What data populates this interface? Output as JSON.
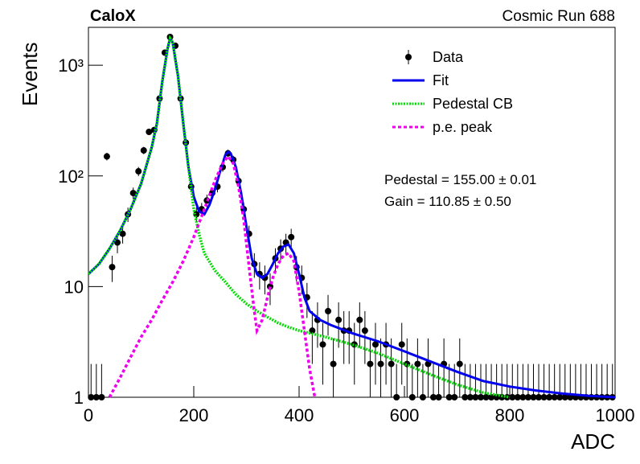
{
  "chart_data": {
    "type": "log-histogram-fit",
    "title": "CaloX",
    "subtitle": "Cosmic Run 688",
    "xlabel": "ADC",
    "ylabel": "Events",
    "annotations": [
      "Pedestal = 155.00 ± 0.01",
      "Gain = 110.85 ± 0.50"
    ],
    "xlim": [
      0,
      1000
    ],
    "xticks": [
      0,
      200,
      400,
      600,
      800,
      1000
    ],
    "ylim": [
      1,
      2200
    ],
    "log_y": true,
    "yticks": [
      1,
      10,
      {
        "value": 100,
        "label": "10²"
      },
      {
        "value": 1000,
        "label": "10³"
      }
    ],
    "legend": "top-right",
    "series": [
      {
        "name": "Data",
        "color": "#000000",
        "style": "points",
        "x": [
          5,
          15,
          25,
          35,
          45,
          55,
          65,
          75,
          85,
          95,
          105,
          115,
          125,
          135,
          145,
          155,
          165,
          175,
          185,
          195,
          205,
          215,
          225,
          235,
          245,
          255,
          265,
          275,
          285,
          295,
          305,
          315,
          325,
          335,
          345,
          355,
          365,
          375,
          385,
          395,
          405,
          415,
          425,
          435,
          445,
          455,
          465,
          475,
          485,
          495,
          505,
          515,
          525,
          535,
          545,
          555,
          565,
          575,
          585,
          595,
          605,
          615,
          625,
          635,
          645,
          655,
          665,
          675,
          685,
          695,
          705,
          715,
          725,
          735,
          745,
          755,
          765,
          775,
          785,
          795,
          805,
          815,
          825,
          835,
          845,
          855,
          865,
          875,
          885,
          895,
          905,
          915,
          925,
          935,
          945,
          955,
          965,
          975,
          985,
          995
        ],
        "values": [
          1,
          1,
          1,
          150,
          15,
          25,
          30,
          45,
          70,
          110,
          170,
          250,
          260,
          500,
          1300,
          1800,
          1500,
          500,
          200,
          80,
          45,
          50,
          60,
          70,
          80,
          120,
          160,
          140,
          90,
          50,
          30,
          16,
          13,
          12,
          10,
          18,
          22,
          25,
          28,
          15,
          12,
          8,
          4,
          5,
          3,
          6,
          2,
          5,
          4,
          4,
          3,
          5,
          4,
          2,
          3,
          2,
          3,
          2,
          1,
          3,
          2,
          1,
          2,
          1,
          2,
          1,
          1,
          2,
          1,
          1,
          2,
          1,
          1,
          1,
          1,
          1,
          1,
          1,
          1,
          1,
          1,
          1,
          1,
          1,
          1,
          1,
          1,
          1,
          1,
          1,
          1,
          1,
          1,
          1,
          1,
          1,
          1,
          1,
          1,
          1
        ],
        "errors": [
          1,
          1,
          1,
          12,
          4,
          5,
          5.5,
          6.7,
          8.4,
          10.5,
          13,
          15.8,
          16,
          22,
          36,
          42,
          39,
          22,
          14,
          9,
          6.7,
          7,
          7.7,
          8.4,
          9,
          11,
          12.6,
          11.8,
          9.5,
          7,
          5.5,
          4,
          3.6,
          3.5,
          3.2,
          4.2,
          4.7,
          5,
          5.3,
          3.9,
          3.5,
          2.8,
          2,
          2.2,
          1.7,
          2.4,
          1.4,
          2.2,
          2,
          2,
          1.7,
          2.2,
          2,
          1.4,
          1.7,
          1.4,
          1.7,
          1.4,
          1,
          1.7,
          1.4,
          1,
          1.4,
          1,
          1.4,
          1,
          1,
          1.4,
          1,
          1,
          1.4,
          1,
          1,
          1,
          1,
          1,
          1,
          1,
          1,
          1,
          1,
          1,
          1,
          1,
          1,
          1,
          1,
          1,
          1,
          1,
          1,
          1,
          1,
          1,
          1,
          1,
          1,
          1,
          1,
          1
        ]
      },
      {
        "name": "Fit",
        "color": "#0000ee",
        "style": "solid",
        "x": [
          0,
          20,
          40,
          60,
          80,
          100,
          120,
          130,
          140,
          150,
          155,
          160,
          170,
          180,
          190,
          200,
          210,
          220,
          230,
          240,
          250,
          260,
          265,
          270,
          280,
          290,
          300,
          310,
          320,
          330,
          340,
          350,
          360,
          370,
          380,
          390,
          400,
          410,
          420,
          440,
          460,
          500,
          550,
          600,
          650,
          700,
          750,
          800,
          850,
          900,
          950,
          1000
        ],
        "values": [
          13,
          16,
          22,
          32,
          50,
          85,
          180,
          300,
          700,
          1400,
          1750,
          1600,
          800,
          300,
          120,
          65,
          48,
          45,
          55,
          75,
          110,
          155,
          165,
          160,
          120,
          70,
          35,
          18,
          13,
          12,
          13,
          16,
          20,
          23,
          24,
          20,
          13,
          8,
          6,
          5,
          4.5,
          3.8,
          3.2,
          2.6,
          2.1,
          1.7,
          1.4,
          1.25,
          1.15,
          1.08,
          1.03,
          1
        ]
      },
      {
        "name": "Pedestal CB",
        "color": "#00dd00",
        "style": "dotted",
        "x": [
          0,
          20,
          40,
          60,
          80,
          100,
          120,
          130,
          140,
          150,
          155,
          160,
          170,
          180,
          190,
          200,
          210,
          220,
          240,
          260,
          280,
          300,
          320,
          340,
          360,
          380,
          400,
          450,
          500,
          550,
          600,
          650,
          700,
          750,
          800
        ],
        "values": [
          13,
          16,
          22,
          32,
          50,
          85,
          180,
          300,
          700,
          1400,
          1750,
          1600,
          800,
          300,
          120,
          50,
          30,
          20,
          14,
          11,
          8.5,
          7,
          6,
          5.3,
          4.7,
          4.3,
          4,
          3.5,
          3,
          2.5,
          2,
          1.6,
          1.3,
          1.1,
          1
        ]
      },
      {
        "name": "p.e. peak",
        "color": "#ee00ee",
        "style": "dashed",
        "x": [
          40,
          60,
          80,
          100,
          120,
          140,
          160,
          180,
          200,
          220,
          240,
          255,
          265,
          275,
          285,
          295,
          305,
          315,
          320,
          330,
          340,
          350,
          360,
          370,
          380,
          390,
          400,
          410,
          420,
          430
        ],
        "values": [
          1,
          1.5,
          2.3,
          3.5,
          5,
          7.5,
          11,
          17,
          28,
          50,
          90,
          130,
          150,
          130,
          80,
          40,
          15,
          6,
          4,
          5,
          8,
          12,
          16,
          19,
          20,
          17,
          9,
          4,
          1.8,
          1
        ]
      }
    ]
  }
}
